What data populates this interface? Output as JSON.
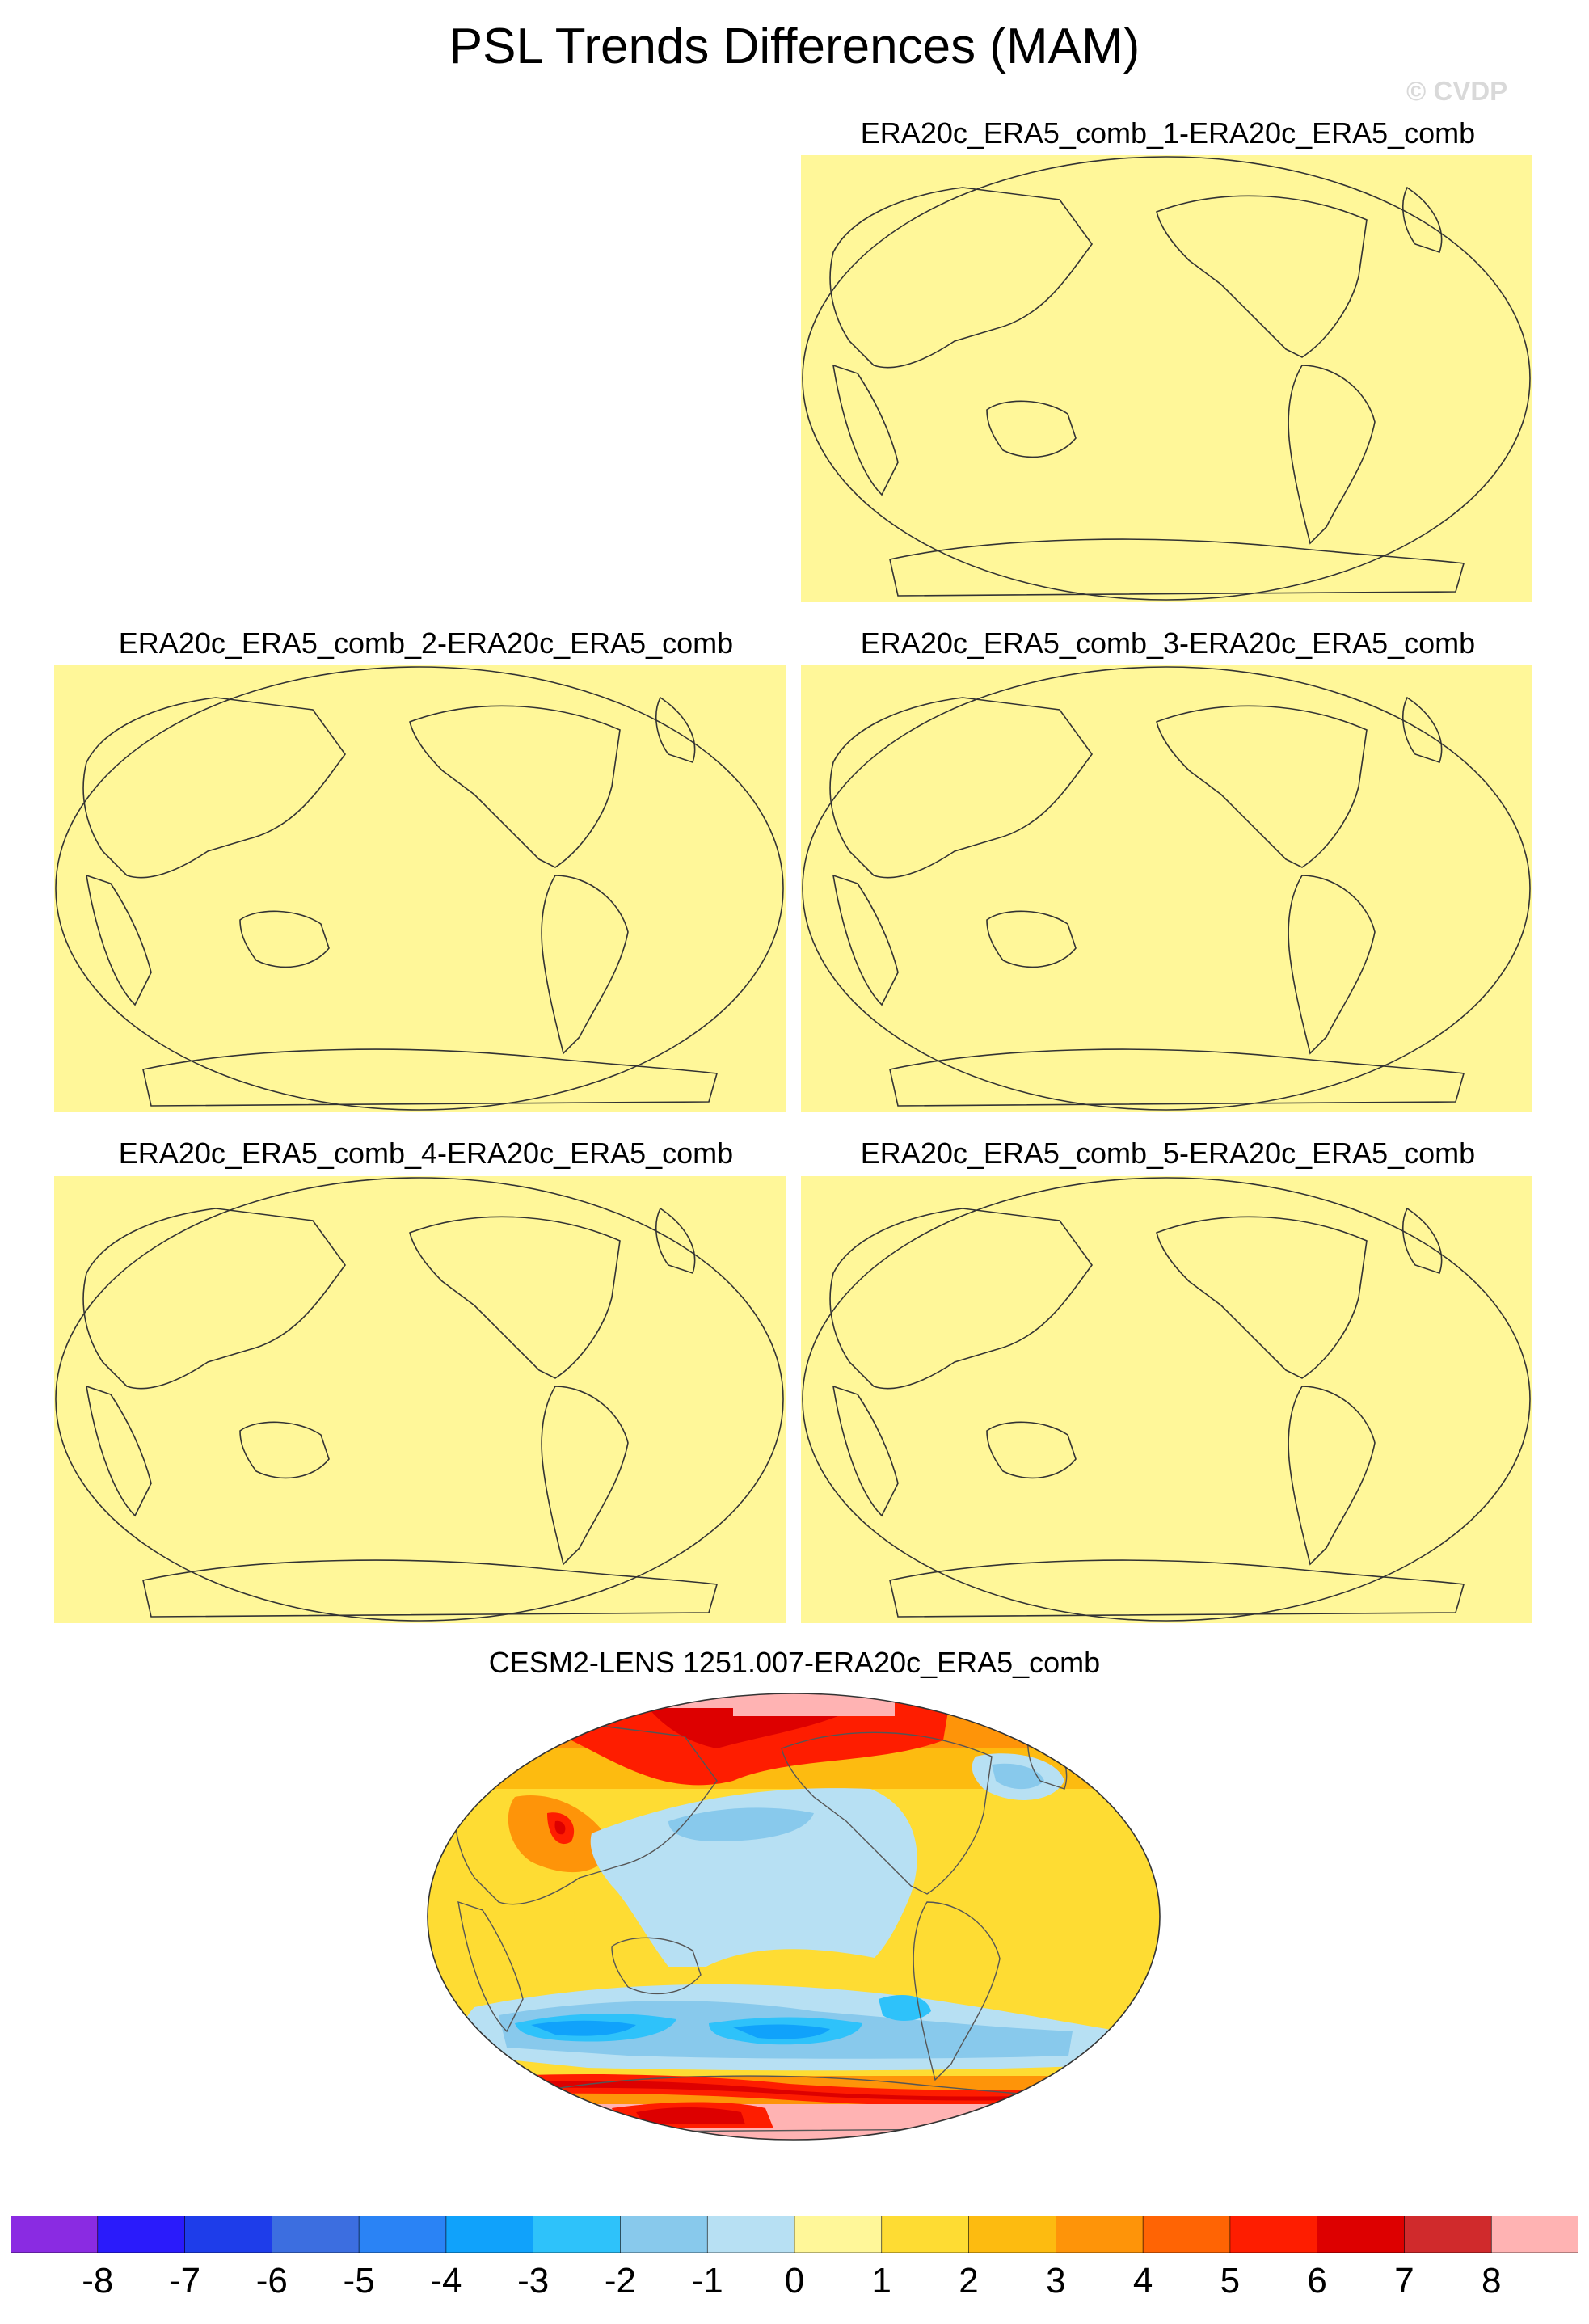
{
  "header": {
    "title": "PSL Trends Differences (MAM)",
    "watermark": "© CVDP"
  },
  "panels": [
    {
      "id": "p1",
      "title": "ERA20c_ERA5_comb_1-ERA20c_ERA5_comb",
      "fill": "uniform 0 to 1",
      "fill_color": "#fff799"
    },
    {
      "id": "p2",
      "title": "ERA20c_ERA5_comb_2-ERA20c_ERA5_comb",
      "fill": "uniform 0 to 1",
      "fill_color": "#fff799"
    },
    {
      "id": "p3",
      "title": "ERA20c_ERA5_comb_3-ERA20c_ERA5_comb",
      "fill": "uniform 0 to 1",
      "fill_color": "#fff799"
    },
    {
      "id": "p4",
      "title": "ERA20c_ERA5_comb_4-ERA20c_ERA5_comb",
      "fill": "uniform 0 to 1",
      "fill_color": "#fff799"
    },
    {
      "id": "p5",
      "title": "ERA20c_ERA5_comb_5-ERA20c_ERA5_comb",
      "fill": "uniform 0 to 1",
      "fill_color": "#fff799"
    },
    {
      "id": "p6",
      "title": "CESM2-LENS 1251.007-ERA20c_ERA5_comb",
      "fill": "spatial pattern",
      "fill_color": "mixed"
    }
  ],
  "colorbar": {
    "colors": [
      "#8a2be2",
      "#2a1bfb",
      "#1e3dea",
      "#3c6ee0",
      "#2a83f5",
      "#10a2fb",
      "#2ec2fa",
      "#88c9ec",
      "#b7e0f3",
      "#fff799",
      "#fedc33",
      "#fdbb10",
      "#fe9409",
      "#ff6404",
      "#fe1d00",
      "#dd0000",
      "#d02a2c",
      "#ffb3b3"
    ],
    "tick_labels": [
      "-8",
      "-7",
      "-6",
      "-5",
      "-4",
      "-3",
      "-2",
      "-1",
      "0",
      "1",
      "2",
      "3",
      "4",
      "5",
      "6",
      "7",
      "8"
    ]
  }
}
